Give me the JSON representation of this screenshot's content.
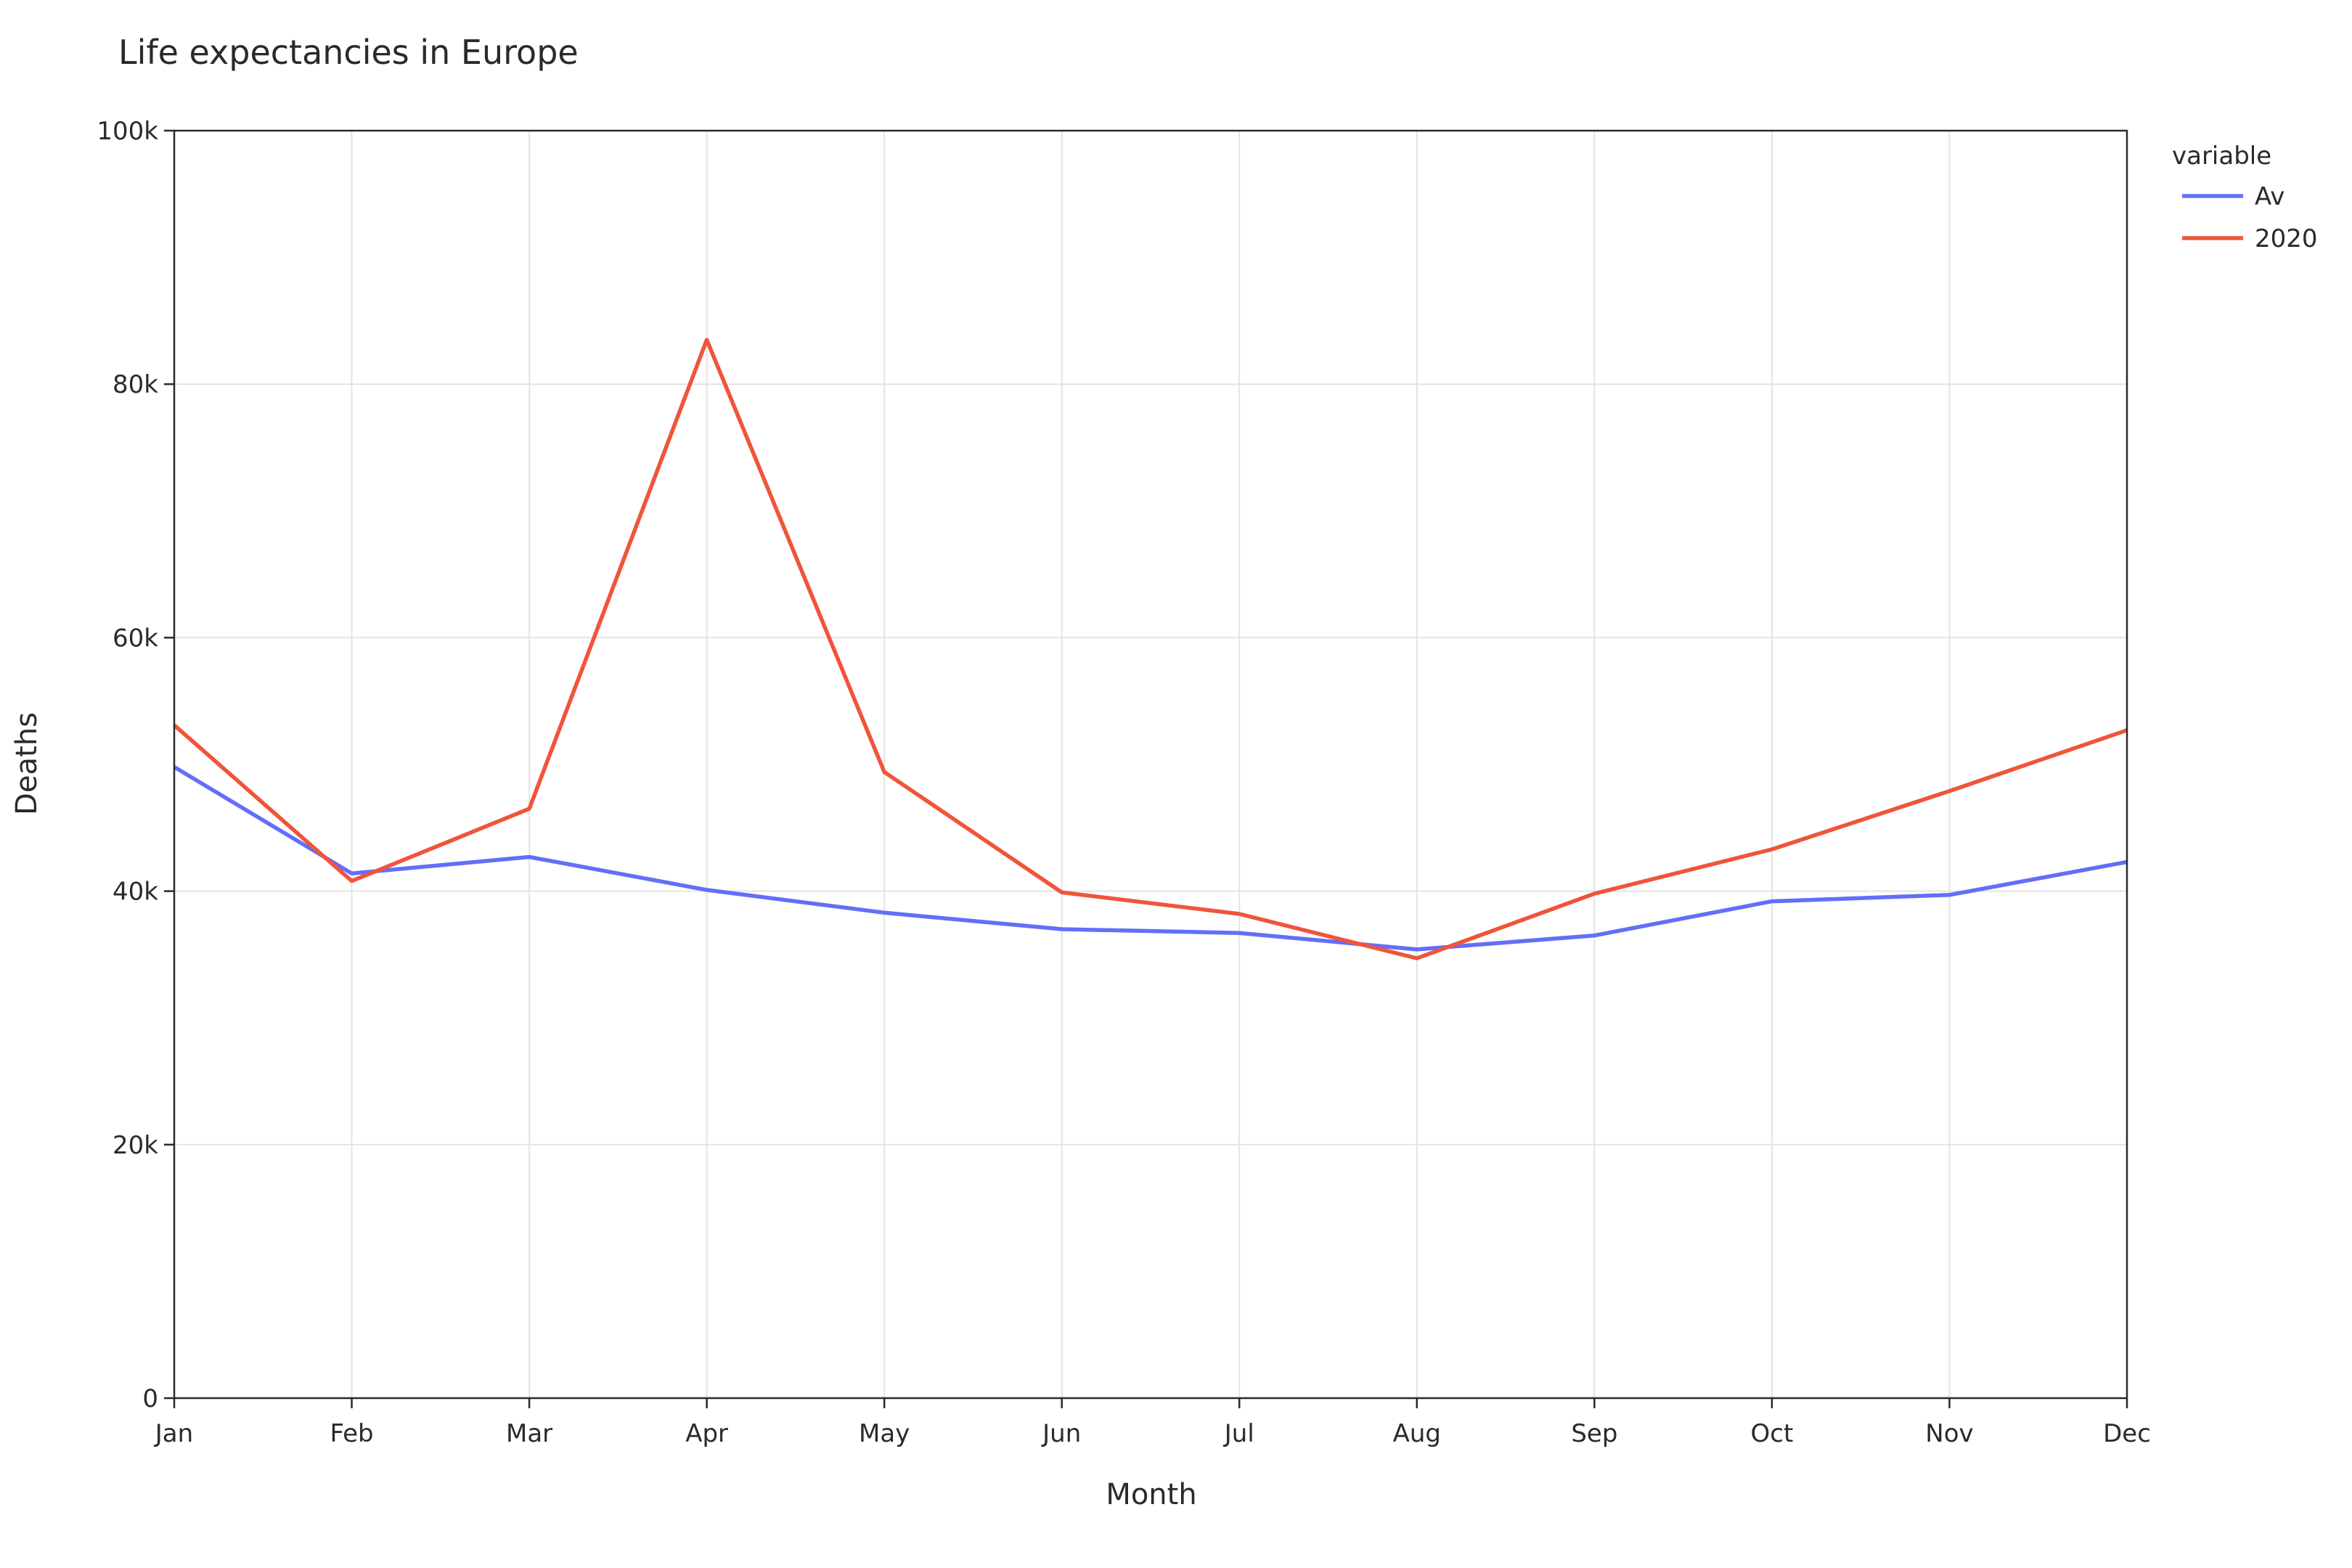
{
  "chart_data": {
    "type": "line",
    "title": "Life expectancies in Europe",
    "xlabel": "Month",
    "ylabel": "Deaths",
    "categories": [
      "Jan",
      "Feb",
      "Mar",
      "Apr",
      "May",
      "Jun",
      "Jul",
      "Aug",
      "Sep",
      "Oct",
      "Nov",
      "Dec"
    ],
    "ylim": [
      0,
      100000
    ],
    "yticks": [
      0,
      20000,
      40000,
      60000,
      80000,
      100000
    ],
    "ytick_labels": [
      "0",
      "20k",
      "40k",
      "60k",
      "80k",
      "100k"
    ],
    "grid": true,
    "legend": {
      "title": "variable",
      "position": "top-right, outside plot"
    },
    "series": [
      {
        "name": "Av",
        "color": "#636efa",
        "values": [
          49800,
          41400,
          42700,
          40100,
          38300,
          37000,
          36700,
          35400,
          36500,
          39200,
          39700,
          42300
        ]
      },
      {
        "name": "2020",
        "color": "#ef553b",
        "values": [
          53100,
          40800,
          46500,
          83500,
          49400,
          39900,
          38200,
          34700,
          39800,
          43300,
          47900,
          52700
        ]
      }
    ]
  }
}
